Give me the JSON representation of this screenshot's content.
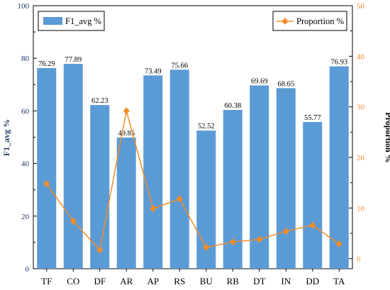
{
  "chart_data": {
    "type": "bar",
    "categories": [
      "TF",
      "CO",
      "DF",
      "AR",
      "AP",
      "RS",
      "BU",
      "RB",
      "DT",
      "IN",
      "DD",
      "TA"
    ],
    "series": [
      {
        "name": "F1_avg %",
        "type": "bar",
        "axis": "left",
        "color": "#5b9bd5",
        "values": [
          76.29,
          77.89,
          62.23,
          49.85,
          73.49,
          75.66,
          52.52,
          60.38,
          69.69,
          68.65,
          55.77,
          76.93
        ],
        "labels": [
          "76.29",
          "77.89",
          "62.23",
          "49.85",
          "73.49",
          "75.66",
          "52.52",
          "60.38",
          "69.69",
          "68.65",
          "55.77",
          "76.93"
        ]
      },
      {
        "name": "Proportion %",
        "type": "line",
        "axis": "right",
        "color": "#f28c28",
        "marker": "diamond",
        "values": [
          14.8,
          7.4,
          1.7,
          29.2,
          9.9,
          11.8,
          2.2,
          3.3,
          3.8,
          5.4,
          6.6,
          2.9
        ]
      }
    ],
    "ylabel": "F1_avg %",
    "y2label": "Proportion %",
    "ylim": [
      0,
      100
    ],
    "y2lim": [
      -2,
      50
    ],
    "yticks": [
      0,
      20,
      40,
      60,
      80,
      100
    ],
    "y2ticks": [
      0,
      10,
      20,
      30,
      40,
      50
    ],
    "grid": false,
    "legend": [
      "top-left",
      "top-right"
    ]
  }
}
